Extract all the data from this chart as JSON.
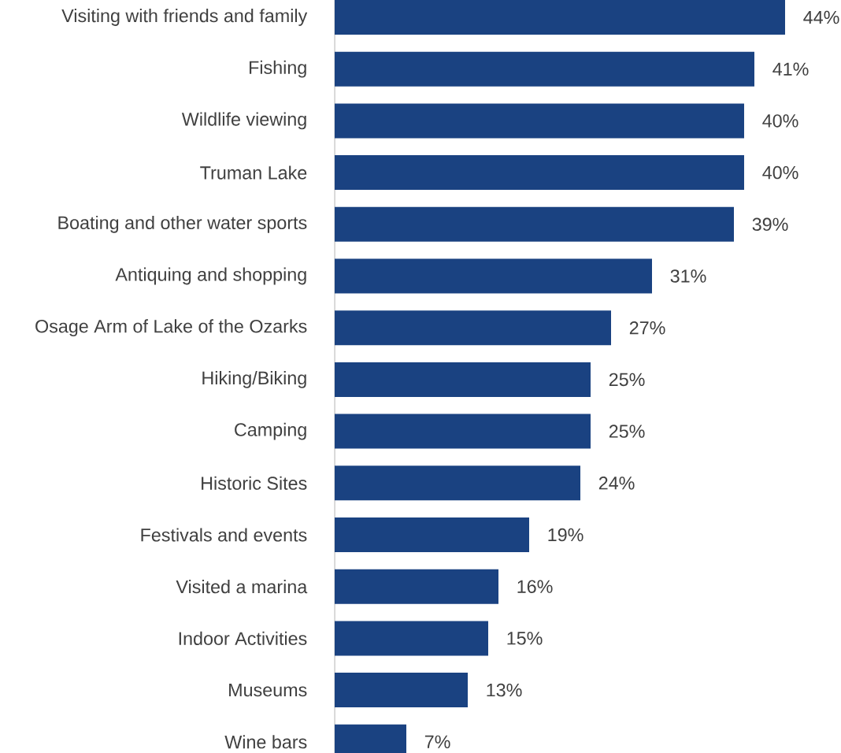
{
  "chart_data": {
    "type": "bar",
    "orientation": "horizontal",
    "color": "#1a4281",
    "categories": [
      "Visiting with friends and family",
      "Fishing",
      "Wildlife viewing",
      "Truman Lake",
      "Boating and other water sports",
      "Antiquing and shopping",
      "Osage Arm of Lake of the Ozarks",
      "Hiking/Biking",
      "Camping",
      "Historic Sites",
      "Festivals and events",
      "Visited a marina",
      "Indoor Activities",
      "Museums",
      "Wine bars"
    ],
    "values": [
      44,
      41,
      40,
      40,
      39,
      31,
      27,
      25,
      25,
      24,
      19,
      16,
      15,
      13,
      7
    ],
    "value_labels": [
      "44%",
      "41%",
      "40%",
      "40%",
      "39%",
      "31%",
      "27%",
      "25%",
      "25%",
      "24%",
      "19%",
      "16%",
      "15%",
      "13%",
      "7%"
    ]
  }
}
